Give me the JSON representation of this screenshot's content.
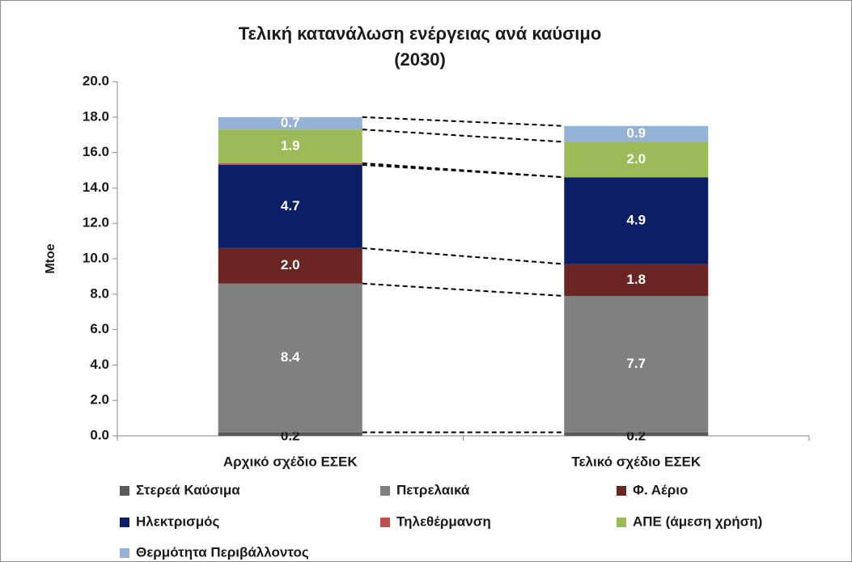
{
  "chart_data": {
    "type": "stacked_bar",
    "title": "Τελική κατανάλωση ενέργειας ανά καύσιμο",
    "subtitle": "(2030)",
    "y_label": "Mtoe",
    "categories": [
      "Αρχικό σχέδιο ΕΣΕΚ",
      "Τελικό σχέδιο ΕΣΕΚ"
    ],
    "series": [
      {
        "name": "Στερεά Καύσιμα",
        "color": "#595959",
        "label_color": "#1a1a1a",
        "values": [
          0.2,
          0.2
        ],
        "value_labels": [
          "0.2",
          "0.2"
        ]
      },
      {
        "name": "Πετρελαικά",
        "color": "#808080",
        "label_color": "#ffffff",
        "values": [
          8.4,
          7.7
        ],
        "value_labels": [
          "8.4",
          "7.7"
        ]
      },
      {
        "name": "Φ. Αέριο",
        "color": "#6b2522",
        "label_color": "#ffffff",
        "values": [
          2.0,
          1.8
        ],
        "value_labels": [
          "2.0",
          "1.8"
        ]
      },
      {
        "name": "Ηλεκτρισμός",
        "color": "#0c1e66",
        "label_color": "#ffffff",
        "values": [
          4.7,
          4.9
        ],
        "value_labels": [
          "4.7",
          "4.9"
        ]
      },
      {
        "name": "Τηλεθέρμανση",
        "color": "#c0504d",
        "label_color": "#ffffff",
        "values": [
          0.1,
          0.0
        ],
        "value_labels": [
          null,
          null
        ]
      },
      {
        "name": "ΑΠΕ (άμεση χρήση)",
        "color": "#9bbb59",
        "label_color": "#ffffff",
        "values": [
          1.9,
          2.0
        ],
        "value_labels": [
          "1.9",
          "2.0"
        ]
      },
      {
        "name": "Θερμότητα Περιβάλλοντος",
        "color": "#95b3d7",
        "label_color": "#ffffff",
        "values": [
          0.7,
          0.9
        ],
        "value_labels": [
          "0.7",
          "0.9"
        ]
      }
    ],
    "ylim": [
      0,
      20
    ],
    "yticks": [
      {
        "value": 0,
        "label": "0.0"
      },
      {
        "value": 2,
        "label": "2.0"
      },
      {
        "value": 4,
        "label": "4.0"
      },
      {
        "value": 6,
        "label": "6.0"
      },
      {
        "value": 8,
        "label": "8.0"
      },
      {
        "value": 10,
        "label": "10.0"
      },
      {
        "value": 12,
        "label": "12.0"
      },
      {
        "value": 14,
        "label": "14.0"
      },
      {
        "value": 16,
        "label": "16.0"
      },
      {
        "value": 18,
        "label": "18.0"
      },
      {
        "value": 20,
        "label": "20.0"
      }
    ],
    "grid": false
  }
}
